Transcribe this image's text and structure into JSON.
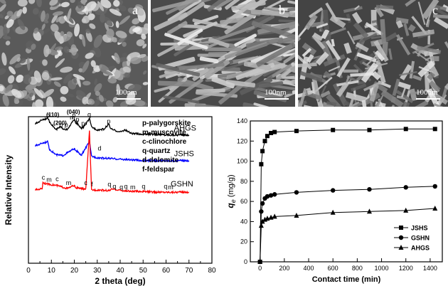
{
  "sem_panels": [
    {
      "letter": "a",
      "scale_label": "100nm"
    },
    {
      "letter": "b",
      "scale_label": "100nm"
    },
    {
      "letter": "c",
      "scale_label": "100nm"
    }
  ],
  "chart_data": [
    {
      "type": "line",
      "xlabel": "2 theta (deg)",
      "ylabel": "Relative Intensity",
      "xlim": [
        0,
        80
      ],
      "xticks": [
        0,
        10,
        20,
        30,
        40,
        50,
        60,
        70,
        80
      ],
      "legend": [
        "p-palygorskite",
        "m-muscovite",
        "c-clinochlore",
        "q-quartz",
        "d-dolomite",
        "f-feldspar"
      ],
      "series": [
        {
          "name": "AHGS",
          "color": "#000000",
          "x": [
            3,
            6,
            8.5,
            9,
            12,
            13.8,
            15,
            17,
            19.8,
            20.8,
            23,
            24,
            26.6,
            27.5,
            30,
            33,
            35,
            36,
            40,
            42,
            45,
            50,
            55,
            60,
            65,
            70
          ],
          "y": [
            0.95,
            0.98,
            0.99,
            0.97,
            0.91,
            0.93,
            0.92,
            0.91,
            0.98,
            0.96,
            0.92,
            0.93,
            0.985,
            0.93,
            0.91,
            0.915,
            0.95,
            0.915,
            0.895,
            0.91,
            0.885,
            0.88,
            0.88,
            0.875,
            0.875,
            0.875
          ]
        },
        {
          "name": "JSHS",
          "color": "#0000ff",
          "x": [
            3,
            6,
            8.5,
            9,
            12,
            15,
            19.8,
            20.8,
            23,
            26.6,
            27.5,
            30,
            35,
            40,
            45,
            50,
            55,
            60,
            65,
            70
          ],
          "y": [
            0.8,
            0.82,
            0.83,
            0.78,
            0.74,
            0.735,
            0.78,
            0.77,
            0.735,
            0.83,
            0.73,
            0.72,
            0.715,
            0.71,
            0.705,
            0.7,
            0.7,
            0.7,
            0.7,
            0.7
          ]
        },
        {
          "name": "GSHN",
          "color": "#ff0000",
          "x": [
            3,
            6,
            6.3,
            8.5,
            12.5,
            17,
            19.8,
            20.8,
            25,
            26.6,
            27.5,
            31,
            35,
            36.5,
            39.5,
            41,
            45,
            50,
            55,
            60,
            65,
            70
          ],
          "y": [
            0.5,
            0.51,
            0.55,
            0.54,
            0.53,
            0.51,
            0.53,
            0.515,
            0.505,
            0.9,
            0.5,
            0.5,
            0.495,
            0.505,
            0.5,
            0.495,
            0.49,
            0.49,
            0.485,
            0.485,
            0.485,
            0.485
          ]
        }
      ],
      "annotations": [
        {
          "text": "p",
          "x": 8.5,
          "y": 0.995
        },
        {
          "text": "(110)",
          "x": 10.6,
          "y": 1.0
        },
        {
          "text": "(200)",
          "x": 13.8,
          "y": 0.945
        },
        {
          "text": "p",
          "x": 14.2,
          "y": 0.93
        },
        {
          "text": "p",
          "x": 16.5,
          "y": 0.93
        },
        {
          "text": "(040)",
          "x": 19.6,
          "y": 1.02
        },
        {
          "text": "p",
          "x": 19.8,
          "y": 0.995
        },
        {
          "text": "m",
          "x": 19.2,
          "y": 0.98
        },
        {
          "text": "p",
          "x": 21.4,
          "y": 0.965
        },
        {
          "text": "q",
          "x": 21.0,
          "y": 0.95
        },
        {
          "text": "p",
          "x": 23.8,
          "y": 0.94
        },
        {
          "text": "q",
          "x": 26.5,
          "y": 1.0
        },
        {
          "text": "p",
          "x": 35.0,
          "y": 0.955
        },
        {
          "text": "d",
          "x": 31.0,
          "y": 0.77
        },
        {
          "text": "m",
          "x": 9.0,
          "y": 0.555
        },
        {
          "text": "c",
          "x": 6.5,
          "y": 0.57
        },
        {
          "text": "c",
          "x": 12.5,
          "y": 0.56
        },
        {
          "text": "m",
          "x": 17.5,
          "y": 0.535
        },
        {
          "text": "c",
          "x": 25.0,
          "y": 0.535
        },
        {
          "text": "f",
          "x": 27.7,
          "y": 0.525
        },
        {
          "text": "q",
          "x": 35.3,
          "y": 0.525
        },
        {
          "text": "q",
          "x": 37.5,
          "y": 0.51
        },
        {
          "text": "q",
          "x": 40.5,
          "y": 0.505
        },
        {
          "text": "q",
          "x": 42.5,
          "y": 0.51
        },
        {
          "text": "m",
          "x": 45.5,
          "y": 0.505
        },
        {
          "text": "q",
          "x": 50.2,
          "y": 0.51
        },
        {
          "text": "q",
          "x": 59.8,
          "y": 0.51
        },
        {
          "text": "m",
          "x": 62.0,
          "y": 0.505
        }
      ],
      "series_labels": [
        {
          "text": "AHGS",
          "x": 63.5,
          "y": 0.905
        },
        {
          "text": "JSHS",
          "x": 63.5,
          "y": 0.73
        },
        {
          "text": "GSHN",
          "x": 62.0,
          "y": 0.525
        }
      ]
    },
    {
      "type": "line",
      "xlabel": "Contact time (min)",
      "ylabel": "q_e (mg/g)",
      "ylabel_main": "q",
      "ylabel_sub": "e",
      "ylabel_unit": "(mg/g)",
      "xlim": [
        -80,
        1500
      ],
      "ylim": [
        0,
        140
      ],
      "xticks": [
        0,
        200,
        400,
        600,
        800,
        1000,
        1200,
        1400
      ],
      "yticks": [
        0,
        20,
        40,
        60,
        80,
        100,
        120,
        140
      ],
      "legend_position": "bottom-right",
      "series": [
        {
          "name": "JSHS",
          "marker": "square",
          "x": [
            0,
            10,
            20,
            40,
            60,
            90,
            120,
            300,
            600,
            900,
            1200,
            1440
          ],
          "y": [
            0,
            97,
            110,
            120,
            125,
            128,
            129,
            130,
            131,
            131,
            132,
            132
          ]
        },
        {
          "name": "GSHN",
          "marker": "circle",
          "x": [
            0,
            10,
            20,
            40,
            60,
            90,
            120,
            300,
            600,
            900,
            1200,
            1440
          ],
          "y": [
            0,
            50,
            58,
            63,
            65,
            66,
            67,
            69,
            71,
            72,
            74,
            75
          ]
        },
        {
          "name": "AHGS",
          "marker": "triangle",
          "x": [
            0,
            10,
            20,
            40,
            60,
            90,
            120,
            300,
            600,
            900,
            1200,
            1440
          ],
          "y": [
            0,
            36,
            40,
            42,
            43,
            44,
            45,
            46,
            49,
            50,
            51,
            53
          ]
        }
      ]
    }
  ]
}
